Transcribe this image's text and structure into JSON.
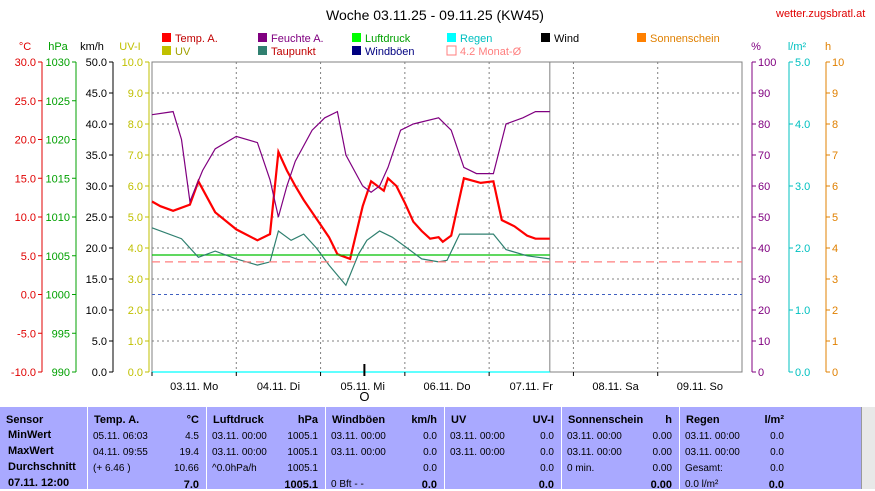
{
  "site": "wetter.zugsbratl.at",
  "chart_data": {
    "type": "line",
    "title": "Woche 03.11.25 - 09.11.25 (KW45)",
    "legend": [
      {
        "label": "Temp. A.",
        "color": "#ff0000",
        "style": "box"
      },
      {
        "label": "Feuchte A.",
        "color": "#800080",
        "style": "box"
      },
      {
        "label": "Luftdruck",
        "color": "#00ff00",
        "style": "box"
      },
      {
        "label": "Regen",
        "color": "#00ffff",
        "style": "box"
      },
      {
        "label": "Wind",
        "color": "#000000",
        "style": "box"
      },
      {
        "label": "Sonnenschein",
        "color": "#ff8000",
        "style": "box"
      },
      {
        "label": "UV",
        "color": "#c0c000",
        "style": "box"
      },
      {
        "label": "Taupunkt",
        "color": "#308070",
        "style": "box"
      },
      {
        "label": "Windböen",
        "color": "#000080",
        "style": "box"
      },
      {
        "label": "4.2 Monat-Ø",
        "color": "#ff7f7f",
        "style": "outline"
      }
    ],
    "left_axes": [
      {
        "unit": "°C",
        "color": "#e00000",
        "ticks": [
          "30.0",
          "25.0",
          "20.0",
          "15.0",
          "10.0",
          "5.0",
          "0.0",
          "-5.0",
          "-10.0"
        ]
      },
      {
        "unit": "hPa",
        "color": "#00a000",
        "ticks": [
          "1030",
          "1025",
          "1020",
          "1015",
          "1010",
          "1005",
          "1000",
          "995",
          "990"
        ]
      },
      {
        "unit": "km/h",
        "color": "#000000",
        "ticks": [
          "50.0",
          "45.0",
          "40.0",
          "35.0",
          "30.0",
          "25.0",
          "20.0",
          "15.0",
          "10.0",
          "5.0",
          "0.0"
        ]
      },
      {
        "unit": "UV-I",
        "color": "#c0c000",
        "ticks": [
          "10.0",
          "9.0",
          "8.0",
          "7.0",
          "6.0",
          "5.0",
          "4.0",
          "3.0",
          "2.0",
          "1.0",
          "0.0"
        ]
      }
    ],
    "right_axes": [
      {
        "unit": "%",
        "color": "#800080",
        "ticks": [
          "100",
          "90",
          "80",
          "70",
          "60",
          "50",
          "40",
          "30",
          "20",
          "10",
          "0"
        ]
      },
      {
        "unit": "l/m²",
        "color": "#00c0c0",
        "ticks": [
          "5.0",
          "4.0",
          "3.0",
          "2.0",
          "1.0",
          "0.0"
        ]
      },
      {
        "unit": "h",
        "color": "#e08000",
        "ticks": [
          "10",
          "9",
          "8",
          "7",
          "6",
          "5",
          "4",
          "3",
          "2",
          "1",
          "0"
        ]
      }
    ],
    "days": [
      "03.11. Mo",
      "04.11. Di",
      "05.11. Mi",
      "06.11. Do",
      "07.11. Fr",
      "08.11. Sa",
      "09.11. So"
    ],
    "x_days_range": [
      0,
      7
    ],
    "data_end_day": 4.72,
    "temp_range": [
      -10,
      30
    ],
    "series": [
      {
        "name": "Temp. A.",
        "color": "#ff0000",
        "axis": "temp",
        "x": [
          0,
          0.1,
          0.25,
          0.45,
          0.55,
          0.65,
          0.75,
          1.0,
          1.25,
          1.4,
          1.5,
          1.6,
          1.7,
          1.8,
          1.95,
          2.1,
          2.2,
          2.35,
          2.5,
          2.6,
          2.75,
          2.8,
          2.9,
          3.0,
          3.1,
          3.2,
          3.3,
          3.4,
          3.45,
          3.55,
          3.7,
          3.9,
          4.05,
          4.15,
          4.3,
          4.45,
          4.55,
          4.72
        ],
        "y": [
          12.0,
          11.4,
          10.8,
          11.6,
          14.6,
          12.6,
          10.6,
          8.4,
          7.0,
          7.8,
          18.4,
          16.0,
          14.0,
          12.2,
          9.8,
          7.4,
          5.2,
          4.6,
          11.4,
          14.6,
          13.4,
          15.0,
          14.0,
          11.8,
          9.4,
          8.2,
          7.2,
          7.4,
          6.8,
          7.6,
          15.0,
          14.4,
          14.6,
          9.6,
          8.8,
          7.6,
          7.2,
          7.2
        ]
      },
      {
        "name": "Feuchte A.",
        "color": "#800080",
        "axis": "humidity",
        "x": [
          0,
          0.25,
          0.35,
          0.45,
          0.6,
          0.75,
          1.0,
          1.25,
          1.4,
          1.5,
          1.6,
          1.7,
          1.9,
          2.05,
          2.2,
          2.3,
          2.5,
          2.6,
          2.7,
          2.8,
          2.95,
          3.1,
          3.4,
          3.55,
          3.7,
          3.85,
          4.05,
          4.2,
          4.4,
          4.55,
          4.72
        ],
        "y": [
          83,
          84,
          75,
          55,
          65,
          72,
          76,
          74,
          62,
          50,
          60,
          68,
          78,
          82,
          84,
          70,
          60,
          58,
          60,
          66,
          78,
          80,
          82,
          78,
          66,
          64,
          64,
          80,
          82,
          84,
          84
        ]
      },
      {
        "name": "Luftdruck",
        "color": "#00c000",
        "axis": "pressure",
        "x": [
          0,
          4.72
        ],
        "y": [
          1005.1,
          1005.1
        ]
      },
      {
        "name": "Taupunkt",
        "color": "#308070",
        "axis": "temp",
        "x": [
          0,
          0.35,
          0.55,
          0.75,
          1.0,
          1.25,
          1.4,
          1.5,
          1.65,
          1.8,
          1.95,
          2.1,
          2.3,
          2.45,
          2.55,
          2.7,
          2.85,
          3.0,
          3.2,
          3.4,
          3.5,
          3.65,
          3.85,
          4.05,
          4.2,
          4.45,
          4.72
        ],
        "y": [
          8.6,
          7.2,
          4.8,
          5.6,
          4.6,
          3.8,
          4.2,
          8.2,
          7.0,
          7.8,
          6.0,
          3.8,
          1.2,
          5.2,
          7.0,
          8.2,
          7.4,
          6.2,
          4.6,
          4.2,
          4.4,
          7.8,
          7.8,
          7.8,
          5.8,
          5.0,
          4.6
        ]
      },
      {
        "name": "4.2 Monat-Ø",
        "color": "#ff7f7f",
        "axis": "temp",
        "dashed": true,
        "x": [
          0,
          7
        ],
        "y": [
          4.2,
          4.2
        ]
      },
      {
        "name": "Regen",
        "color": "#00ffff",
        "axis": "rain",
        "x": [
          0,
          4.72
        ],
        "y": [
          0,
          0
        ]
      }
    ],
    "marker_label": "O"
  },
  "table": {
    "columns": [
      {
        "title": "Sensor",
        "unit": ""
      },
      {
        "title": "Temp. A.",
        "unit": "°C"
      },
      {
        "title": "Luftdruck",
        "unit": "hPa"
      },
      {
        "title": "Windböen",
        "unit": "km/h"
      },
      {
        "title": "UV",
        "unit": "UV-I"
      },
      {
        "title": "Sonnenschein",
        "unit": "h"
      },
      {
        "title": "Regen",
        "unit": "l/m²"
      }
    ],
    "row_labels": [
      "MinWert",
      "MaxWert",
      "Durchschnitt",
      "07.11. 12:00"
    ],
    "temp": [
      [
        "05.11.  06:03",
        "4.5"
      ],
      [
        "04.11.  09:55",
        "19.4"
      ],
      [
        "(+ 6.46 )",
        "10.66"
      ],
      [
        "",
        "7.0"
      ]
    ],
    "pressure": [
      [
        "03.11.  00:00",
        "1005.1"
      ],
      [
        "03.11.  00:00",
        "1005.1"
      ],
      [
        "^0.0hPa/h",
        "1005.1"
      ],
      [
        "",
        "1005.1"
      ]
    ],
    "wind": [
      [
        "03.11.  00:00",
        "0.0"
      ],
      [
        "03.11.  00:00",
        "0.0"
      ],
      [
        "",
        "0.0"
      ],
      [
        "0 Bft - -",
        "0.0"
      ]
    ],
    "uv": [
      [
        "03.11.  00:00",
        "0.0"
      ],
      [
        "03.11.  00:00",
        "0.0"
      ],
      [
        "",
        "0.0"
      ],
      [
        "",
        "0.0"
      ]
    ],
    "sun": [
      [
        "03.11.  00:00",
        "0.00"
      ],
      [
        "03.11.  00:00",
        "0.00"
      ],
      [
        "0 min.",
        "0.00"
      ],
      [
        "",
        "0.00"
      ]
    ],
    "rain": [
      [
        "03.11.  00:00",
        "0.0"
      ],
      [
        "03.11.  00:00",
        "0.0"
      ],
      [
        "Gesamt:",
        "0.0"
      ],
      [
        "0.0 l/m²",
        "0.0"
      ]
    ]
  }
}
